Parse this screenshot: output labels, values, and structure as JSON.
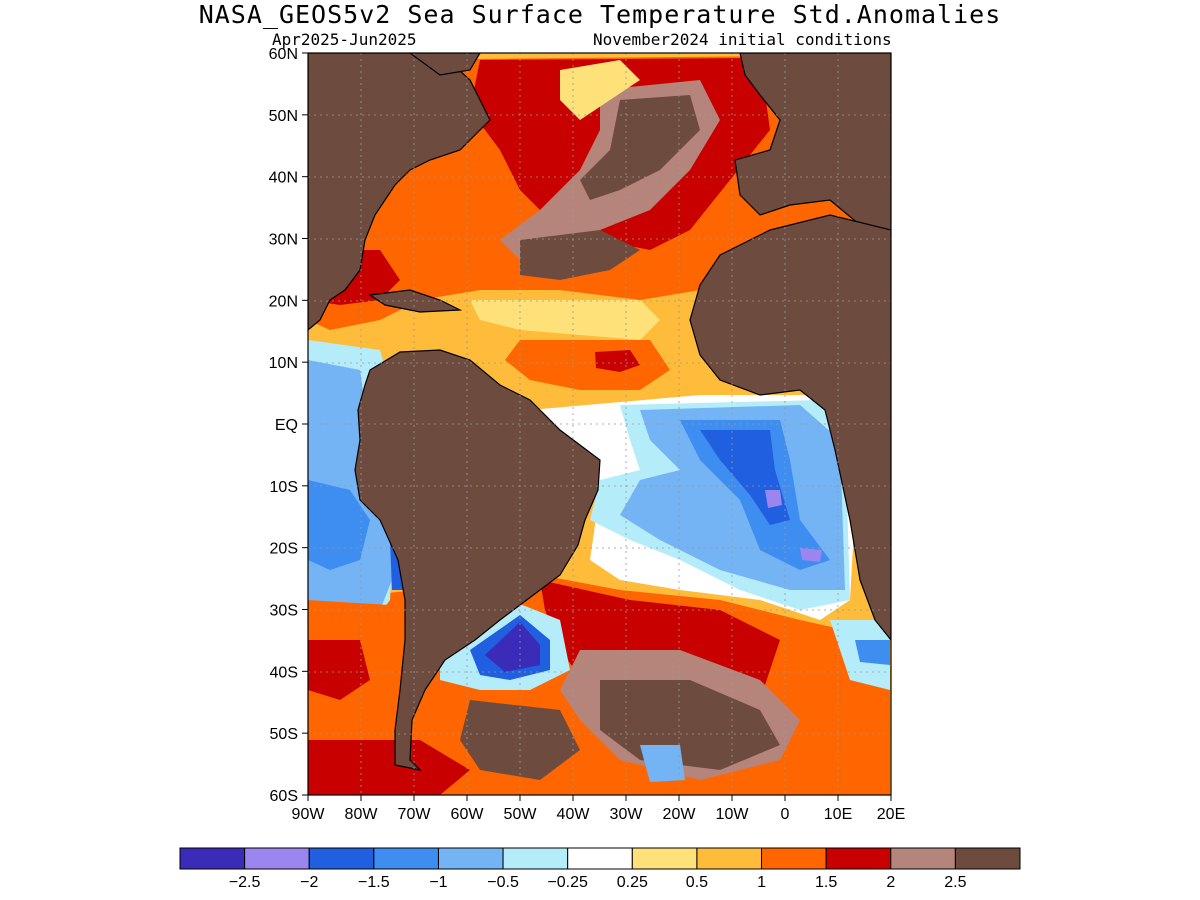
{
  "title": "NASA_GEOS5v2 Sea Surface Temperature Std.Anomalies",
  "subtitle_left": "Apr2025-Jun2025",
  "subtitle_right": "November2024 initial conditions",
  "map": {
    "region": "Atlantic Ocean",
    "lon_range": [
      -90,
      20
    ],
    "lat_range": [
      -60,
      60
    ],
    "lat_labels": [
      "60N",
      "50N",
      "40N",
      "30N",
      "20N",
      "10N",
      "EQ",
      "10S",
      "20S",
      "30S",
      "40S",
      "50S",
      "60S"
    ],
    "lon_labels": [
      "90W",
      "80W",
      "70W",
      "60W",
      "50W",
      "40W",
      "30W",
      "20W",
      "10W",
      "0",
      "10E",
      "20E"
    ],
    "land_color": "#6e4b3f",
    "grid": true
  },
  "colorbar": {
    "levels": [
      "-2.5",
      "-2",
      "-1.5",
      "-1",
      "-0.5",
      "-0.25",
      "0.25",
      "0.5",
      "1",
      "1.5",
      "2",
      "2.5"
    ],
    "colors": [
      "#3a2bb8",
      "#9b86f0",
      "#1f5fe0",
      "#3d8ef0",
      "#74b4f5",
      "#b4ecfa",
      "#ffffff",
      "#ffe17a",
      "#ffbb3a",
      "#ff6600",
      "#c80000",
      "#b5857c",
      "#6e4b3f"
    ]
  }
}
